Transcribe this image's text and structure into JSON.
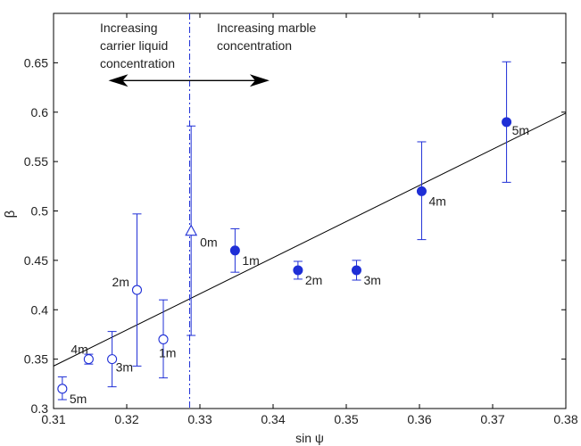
{
  "chart_data": {
    "type": "scatter",
    "xlabel": "sin ψ",
    "ylabel": "β",
    "xlim": [
      0.31,
      0.38
    ],
    "ylim": [
      0.3,
      0.7
    ],
    "x_ticks": [
      "0.31",
      "0.32",
      "0.33",
      "0.34",
      "0.35",
      "0.36",
      "0.37",
      "0.38"
    ],
    "y_ticks": [
      "0.3",
      "0.35",
      "0.4",
      "0.45",
      "0.5",
      "0.55",
      "0.6",
      "0.65"
    ],
    "grid": false,
    "marker_color": "#1f2fd6",
    "series": [
      {
        "marker": "open-circle",
        "points": [
          {
            "label": "5m",
            "x": 0.3112,
            "y": 0.32,
            "err_low": 0.309,
            "err_high": 0.332
          },
          {
            "label": "4m",
            "x": 0.3148,
            "y": 0.35,
            "err_low": 0.345,
            "err_high": 0.355
          },
          {
            "label": "3m",
            "x": 0.318,
            "y": 0.35,
            "err_low": 0.322,
            "err_high": 0.378
          },
          {
            "label": "2m",
            "x": 0.3214,
            "y": 0.42,
            "err_low": 0.343,
            "err_high": 0.497
          },
          {
            "label": "1m",
            "x": 0.325,
            "y": 0.37,
            "err_low": 0.331,
            "err_high": 0.41
          }
        ]
      },
      {
        "marker": "open-triangle",
        "points": [
          {
            "label": "0m",
            "x": 0.3288,
            "y": 0.48,
            "err_low": 0.374,
            "err_high": 0.586
          }
        ]
      },
      {
        "marker": "filled-circle",
        "points": [
          {
            "label": "1m",
            "x": 0.3348,
            "y": 0.46,
            "err_low": 0.438,
            "err_high": 0.482
          },
          {
            "label": "2m",
            "x": 0.3434,
            "y": 0.44,
            "err_low": 0.431,
            "err_high": 0.449
          },
          {
            "label": "3m",
            "x": 0.3514,
            "y": 0.44,
            "err_low": 0.43,
            "err_high": 0.45
          },
          {
            "label": "4m",
            "x": 0.3603,
            "y": 0.52,
            "err_low": 0.471,
            "err_high": 0.57
          },
          {
            "label": "5m",
            "x": 0.3719,
            "y": 0.59,
            "err_low": 0.529,
            "err_high": 0.651
          }
        ]
      }
    ],
    "fit_line": {
      "x": [
        0.31,
        0.38
      ],
      "y": [
        0.343,
        0.599
      ]
    },
    "divider_x": 0.3286,
    "annotations": {
      "left": [
        "Increasing",
        "carrier liquid",
        "concentration"
      ],
      "right": [
        "Increasing marble",
        "concentration"
      ]
    },
    "arrow_x_range": [
      0.3175,
      0.3395
    ],
    "arrow_y": 0.632
  }
}
